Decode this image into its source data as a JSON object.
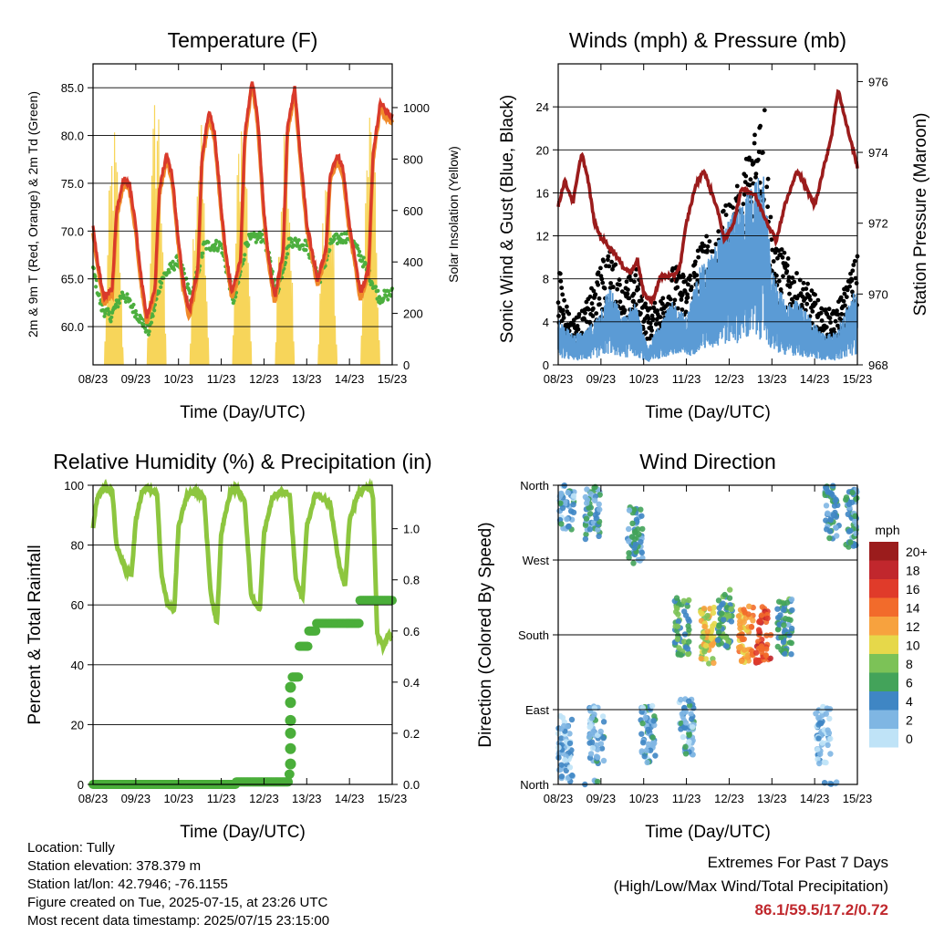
{
  "chart_data": [
    {
      "type": "line",
      "title": "Temperature (F)",
      "xlabel": "Time (Day/UTC)",
      "ylabel": "2m & 9m T (Red, Orange) & 2m Td (Green)",
      "y2label": "Solar Insolation (Yellow)",
      "x_ticks": [
        "08/23",
        "09/23",
        "10/23",
        "11/23",
        "12/23",
        "13/23",
        "14/23",
        "15/23"
      ],
      "ylim": [
        56,
        87.5
      ],
      "y_ticks": [
        60.0,
        65.0,
        70.0,
        75.0,
        80.0,
        85.0
      ],
      "y_tick_labels": [
        "60.0",
        "65.0",
        "70.0",
        "75.0",
        "80.0",
        "85.0"
      ],
      "y2lim": [
        0,
        1170
      ],
      "y2_ticks": [
        0,
        200,
        400,
        600,
        800,
        1000
      ],
      "grid": true,
      "colors": {
        "temp_2m": "#d93a2b",
        "temp_9m": "#f08a2a",
        "dewpoint": "#4caf3e",
        "solar": "#f7d55a"
      },
      "series": [
        {
          "name": "2m T",
          "axis": "left",
          "x": [
            0.0,
            0.1,
            0.25,
            0.45,
            0.55,
            0.72,
            0.85,
            1.0,
            1.1,
            1.25,
            1.45,
            1.55,
            1.72,
            1.85,
            2.0,
            2.1,
            2.25,
            2.45,
            2.55,
            2.72,
            2.85,
            3.0,
            3.1,
            3.25,
            3.45,
            3.55,
            3.72,
            3.85,
            4.0,
            4.1,
            4.25,
            4.45,
            4.55,
            4.72,
            4.85,
            5.0,
            5.1,
            5.25,
            5.45,
            5.55,
            5.72,
            5.85,
            6.0,
            6.1,
            6.25,
            6.45,
            6.55,
            6.72,
            6.85,
            7.0
          ],
          "values": [
            70.5,
            67.0,
            63.0,
            64.0,
            72.0,
            75.5,
            75.0,
            70.5,
            66.0,
            61.0,
            64.0,
            74.5,
            78.0,
            76.0,
            69.0,
            65.0,
            61.5,
            66.0,
            78.0,
            82.5,
            80.0,
            72.5,
            68.0,
            63.5,
            67.0,
            80.0,
            86.0,
            82.0,
            72.0,
            67.5,
            63.0,
            68.0,
            81.0,
            85.0,
            78.0,
            71.0,
            68.5,
            65.0,
            68.0,
            76.0,
            78.0,
            76.5,
            70.5,
            68.0,
            63.5,
            66.0,
            78.0,
            83.5,
            82.5,
            82.0
          ]
        },
        {
          "name": "2m Td",
          "axis": "left",
          "x": [
            0.0,
            0.2,
            0.4,
            0.7,
            1.0,
            1.3,
            1.6,
            2.0,
            2.3,
            2.6,
            3.0,
            3.3,
            3.6,
            4.0,
            4.3,
            4.6,
            5.0,
            5.3,
            5.6,
            6.0,
            6.3,
            6.5,
            6.7,
            7.0
          ],
          "values": [
            66.0,
            62.0,
            61.0,
            63.5,
            61.5,
            59.5,
            65.0,
            67.0,
            63.0,
            68.5,
            68.5,
            62.5,
            69.0,
            69.5,
            63.5,
            69.0,
            68.5,
            65.0,
            69.0,
            69.5,
            67.0,
            65.0,
            63.0,
            63.5
          ]
        },
        {
          "name": "Solar",
          "axis": "right",
          "peaks_x": [
            0.5,
            1.5,
            2.5,
            3.5,
            4.5,
            5.5,
            6.5
          ],
          "peaks": [
            960,
            1150,
            1000,
            1120,
            1060,
            900,
            1060
          ]
        }
      ]
    },
    {
      "type": "line",
      "title": "Winds (mph) & Pressure (mb)",
      "xlabel": "Time (Day/UTC)",
      "ylabel": "Sonic Wind & Gust (Blue, Black)",
      "y2label": "Station Pressure (Maroon)",
      "x_ticks": [
        "08/23",
        "09/23",
        "10/23",
        "11/23",
        "12/23",
        "13/23",
        "14/23",
        "15/23"
      ],
      "ylim": [
        0,
        28
      ],
      "y_ticks": [
        0,
        4,
        8,
        12,
        16,
        20,
        24
      ],
      "y2lim": [
        968,
        976.5
      ],
      "y2_ticks": [
        968,
        970,
        972,
        974,
        976
      ],
      "grid": true,
      "colors": {
        "wind": "#5b9bd5",
        "gust": "#000000",
        "pressure": "#9b1c1c"
      },
      "series": [
        {
          "name": "Pressure",
          "axis": "right",
          "x": [
            0.0,
            0.15,
            0.35,
            0.55,
            0.7,
            0.85,
            1.0,
            1.3,
            1.5,
            1.7,
            1.85,
            2.0,
            2.2,
            2.4,
            2.7,
            2.85,
            3.0,
            3.2,
            3.4,
            3.7,
            3.9,
            4.1,
            4.3,
            4.6,
            4.9,
            5.1,
            5.3,
            5.6,
            5.8,
            6.0,
            6.2,
            6.4,
            6.55,
            6.7,
            6.85,
            7.0
          ],
          "values": [
            972.5,
            973.2,
            972.6,
            974.0,
            973.2,
            972.0,
            971.6,
            971.2,
            970.8,
            970.6,
            971.0,
            970.0,
            969.8,
            970.5,
            970.5,
            970.8,
            972.0,
            973.0,
            973.5,
            972.5,
            971.5,
            972.0,
            973.0,
            972.8,
            972.0,
            971.5,
            972.5,
            973.5,
            973.0,
            972.5,
            973.5,
            974.5,
            975.8,
            975.0,
            974.3,
            973.6
          ]
        },
        {
          "name": "Wind",
          "axis": "left",
          "x": [
            0.0,
            0.3,
            0.6,
            0.9,
            1.2,
            1.5,
            1.8,
            2.1,
            2.4,
            2.7,
            3.0,
            3.3,
            3.6,
            3.9,
            4.2,
            4.5,
            4.8,
            5.0,
            5.3,
            5.6,
            5.9,
            6.2,
            6.5,
            6.8,
            7.0
          ],
          "values": [
            3,
            2,
            2,
            3,
            5,
            3,
            4,
            1,
            3,
            4,
            3,
            6,
            7,
            9,
            10,
            11,
            12,
            6,
            4,
            4,
            3,
            2,
            2,
            4,
            5
          ]
        },
        {
          "name": "Gust",
          "axis": "left",
          "x": [
            0.0,
            0.3,
            0.6,
            0.9,
            1.2,
            1.5,
            1.8,
            2.1,
            2.4,
            2.7,
            3.0,
            3.3,
            3.6,
            3.9,
            4.2,
            4.5,
            4.8,
            5.0,
            5.3,
            5.6,
            5.9,
            6.2,
            6.5,
            6.8,
            7.0
          ],
          "values": [
            9,
            4,
            5,
            8,
            11,
            7,
            9,
            5,
            6,
            9,
            8,
            11,
            12,
            14,
            16,
            20,
            26,
            12,
            10,
            8,
            7,
            5,
            5,
            8,
            10
          ]
        }
      ]
    },
    {
      "type": "line",
      "title": "Relative Humidity (%) & Precipitation (in)",
      "xlabel": "Time (Day/UTC)",
      "ylabel": "Percent & Total Rainfall",
      "x_ticks": [
        "08/23",
        "09/23",
        "10/23",
        "11/23",
        "12/23",
        "13/23",
        "14/23",
        "15/23"
      ],
      "ylim": [
        0,
        100
      ],
      "y_ticks": [
        0,
        20,
        40,
        60,
        80,
        100
      ],
      "y2lim": [
        0,
        1.17
      ],
      "y2_ticks": [
        0.0,
        0.2,
        0.4,
        0.6,
        0.8,
        1.0
      ],
      "y2_tick_labels": [
        "0.0",
        "0.2",
        "0.4",
        "0.6",
        "0.8",
        "1.0"
      ],
      "grid": true,
      "colors": {
        "rh": "#8dc63f",
        "precip": "#4aae3a"
      },
      "series": [
        {
          "name": "RH",
          "axis": "left",
          "x": [
            0.0,
            0.1,
            0.25,
            0.45,
            0.55,
            0.75,
            0.9,
            1.0,
            1.15,
            1.3,
            1.5,
            1.6,
            1.75,
            1.9,
            2.0,
            2.2,
            2.4,
            2.6,
            2.75,
            2.9,
            3.0,
            3.2,
            3.35,
            3.55,
            3.7,
            3.9,
            4.0,
            4.2,
            4.4,
            4.6,
            4.75,
            4.9,
            5.0,
            5.2,
            5.35,
            5.55,
            5.75,
            5.9,
            6.0,
            6.2,
            6.35,
            6.5,
            6.55,
            6.65,
            6.8,
            6.9,
            7.0
          ],
          "values": [
            86,
            96,
            99,
            98,
            80,
            72,
            70,
            88,
            98,
            99,
            97,
            70,
            60,
            58,
            86,
            97,
            98,
            96,
            64,
            54,
            84,
            97,
            99,
            95,
            63,
            58,
            84,
            96,
            98,
            97,
            68,
            62,
            86,
            97,
            96,
            94,
            74,
            66,
            88,
            97,
            99,
            99,
            96,
            50,
            46,
            50,
            49
          ]
        },
        {
          "name": "Precip",
          "axis": "right",
          "x": [
            0.0,
            3.3,
            3.35,
            4.5,
            4.58,
            4.62,
            4.65,
            4.8,
            4.82,
            5.0,
            5.03,
            5.2,
            5.22,
            6.2,
            6.23,
            7.0
          ],
          "values": [
            0.0,
            0.0,
            0.01,
            0.01,
            0.04,
            0.25,
            0.42,
            0.42,
            0.54,
            0.54,
            0.6,
            0.6,
            0.63,
            0.63,
            0.72,
            0.72
          ]
        }
      ]
    },
    {
      "type": "scatter",
      "title": "Wind Direction",
      "xlabel": "Time (Day/UTC)",
      "ylabel": "Direction (Colored By Speed)",
      "x_ticks": [
        "08/23",
        "09/23",
        "10/23",
        "11/23",
        "12/23",
        "13/23",
        "14/23",
        "15/23"
      ],
      "y_tick_labels": [
        "North",
        "East",
        "South",
        "West",
        "North"
      ],
      "ylim": [
        0,
        360
      ],
      "grid": true,
      "legend": {
        "placement": "right",
        "title": "mph",
        "labels": [
          "20+",
          "18",
          "16",
          "14",
          "12",
          "10",
          "8",
          "6",
          "4",
          "2",
          "0"
        ],
        "colors": [
          "#9b1c1c",
          "#c1272d",
          "#e03b2a",
          "#f26b2b",
          "#f7a23e",
          "#e6d84a",
          "#7cc257",
          "#43a35a",
          "#3f86c4",
          "#7fb6e3",
          "#bfe3f7"
        ]
      },
      "clusters": [
        {
          "x": 0.15,
          "dir": 50,
          "speed": 2
        },
        {
          "x": 0.2,
          "dir": 340,
          "speed": 3
        },
        {
          "x": 0.8,
          "dir": 330,
          "speed": 4
        },
        {
          "x": 0.9,
          "dir": 60,
          "speed": 3
        },
        {
          "x": 1.8,
          "dir": 300,
          "speed": 4
        },
        {
          "x": 2.1,
          "dir": 60,
          "speed": 3
        },
        {
          "x": 2.9,
          "dir": 190,
          "speed": 6
        },
        {
          "x": 3.0,
          "dir": 70,
          "speed": 3
        },
        {
          "x": 3.5,
          "dir": 180,
          "speed": 10
        },
        {
          "x": 3.9,
          "dir": 200,
          "speed": 6
        },
        {
          "x": 4.4,
          "dir": 180,
          "speed": 12
        },
        {
          "x": 4.8,
          "dir": 180,
          "speed": 16
        },
        {
          "x": 5.3,
          "dir": 190,
          "speed": 5
        },
        {
          "x": 6.2,
          "dir": 60,
          "speed": 2
        },
        {
          "x": 6.4,
          "dir": 330,
          "speed": 4
        },
        {
          "x": 6.9,
          "dir": 320,
          "speed": 4
        }
      ]
    }
  ],
  "info": {
    "location": "Location: Tully",
    "elevation": "Station elevation: 378.379 m",
    "latlon": "Station lat/lon: 42.7946; -76.1155",
    "created": "Figure created on Tue, 2025-07-15, at 23:26 UTC",
    "recent": "Most recent data timestamp: 2025/07/15 23:15:00"
  },
  "extremes": {
    "line1": "Extremes For Past 7 Days",
    "line2": "(High/Low/Max Wind/Total Precipitation)",
    "values": "86.1/59.5/17.2/0.72"
  }
}
